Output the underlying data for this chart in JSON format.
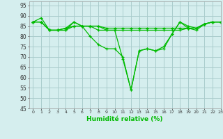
{
  "title": "",
  "xlabel": "Humidité relative (%)",
  "ylabel": "",
  "background_color": "#d5eeee",
  "grid_color": "#aacccc",
  "line_color": "#00bb00",
  "xlim": [
    -0.5,
    23
  ],
  "ylim": [
    45,
    97
  ],
  "yticks": [
    45,
    50,
    55,
    60,
    65,
    70,
    75,
    80,
    85,
    90,
    95
  ],
  "xticks": [
    0,
    1,
    2,
    3,
    4,
    5,
    6,
    7,
    8,
    9,
    10,
    11,
    12,
    13,
    14,
    15,
    16,
    17,
    18,
    19,
    20,
    21,
    22,
    23
  ],
  "series": [
    [
      87,
      89,
      83,
      83,
      83,
      87,
      85,
      85,
      85,
      83,
      83,
      69,
      54,
      73,
      74,
      73,
      74,
      81,
      87,
      85,
      84,
      86,
      87,
      87
    ],
    [
      87,
      87,
      83,
      83,
      83,
      85,
      85,
      85,
      85,
      84,
      84,
      84,
      84,
      84,
      84,
      84,
      84,
      84,
      84,
      84,
      84,
      86,
      87,
      87
    ],
    [
      87,
      87,
      83,
      83,
      84,
      85,
      85,
      85,
      83,
      83,
      83,
      83,
      83,
      83,
      83,
      83,
      83,
      83,
      83,
      84,
      84,
      86,
      87,
      87
    ],
    [
      87,
      87,
      83,
      83,
      84,
      87,
      85,
      80,
      76,
      74,
      74,
      70,
      54,
      73,
      74,
      73,
      75,
      81,
      87,
      84,
      83,
      86,
      87,
      87
    ]
  ]
}
